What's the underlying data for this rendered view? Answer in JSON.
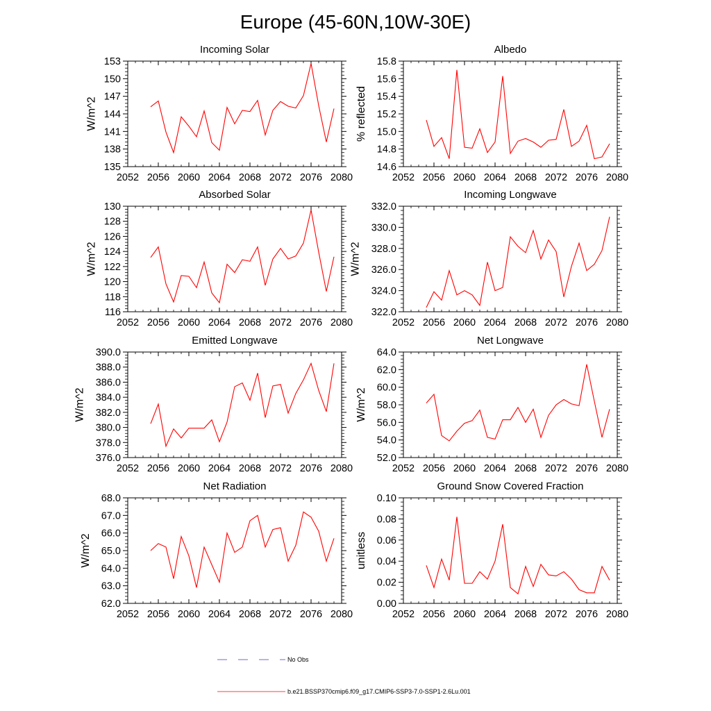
{
  "title": "Europe (45-60N,10W-30E)",
  "legend": [
    {
      "label": "No Obs",
      "color": "#3b3bc8",
      "style": "dashed"
    },
    {
      "label": "b.e21.BSSP370cmip6.f09_g17.CMIP6-SSP3-7.0-SSP1-2.6Lu.001",
      "color": "#ff0000",
      "style": "solid"
    }
  ],
  "chart_data": [
    {
      "type": "line",
      "title": "Incoming Solar",
      "xlabel": "",
      "ylabel": "W/m^2",
      "xlim": [
        2052,
        2080
      ],
      "ylim": [
        135,
        153
      ],
      "xticks": [
        2052,
        2056,
        2060,
        2064,
        2068,
        2072,
        2076,
        2080
      ],
      "yticks": [
        135,
        138,
        141,
        144,
        147,
        150,
        153
      ],
      "ytick_labels": [
        "135",
        "138",
        "141",
        "144",
        "147",
        "150",
        "153"
      ],
      "x": [
        2055,
        2056,
        2057,
        2058,
        2059,
        2060,
        2061,
        2062,
        2063,
        2064,
        2065,
        2066,
        2067,
        2068,
        2069,
        2070,
        2071,
        2072,
        2073,
        2074,
        2075,
        2076,
        2077,
        2078,
        2079
      ],
      "series": [
        {
          "color": "#ff0000",
          "values": [
            145.2,
            146.2,
            140.9,
            137.4,
            143.5,
            141.9,
            140.1,
            144.5,
            139.1,
            137.8,
            145.1,
            142.3,
            144.6,
            144.4,
            146.3,
            140.4,
            144.6,
            146.1,
            145.3,
            145.0,
            147.1,
            152.6,
            145.4,
            139.2,
            144.9
          ]
        }
      ]
    },
    {
      "type": "line",
      "title": "Albedo",
      "xlabel": "",
      "ylabel": "% reflected",
      "xlim": [
        2052,
        2080
      ],
      "ylim": [
        14.6,
        15.8
      ],
      "xticks": [
        2052,
        2056,
        2060,
        2064,
        2068,
        2072,
        2076,
        2080
      ],
      "yticks": [
        14.6,
        14.8,
        15.0,
        15.2,
        15.4,
        15.6,
        15.8
      ],
      "ytick_labels": [
        "14.6",
        "14.8",
        "15.0",
        "15.2",
        "15.4",
        "15.6",
        "15.8"
      ],
      "x": [
        2055,
        2056,
        2057,
        2058,
        2059,
        2060,
        2061,
        2062,
        2063,
        2064,
        2065,
        2066,
        2067,
        2068,
        2069,
        2070,
        2071,
        2072,
        2073,
        2074,
        2075,
        2076,
        2077,
        2078,
        2079
      ],
      "series": [
        {
          "color": "#ff0000",
          "values": [
            15.13,
            14.83,
            14.93,
            14.69,
            15.7,
            14.82,
            14.81,
            15.03,
            14.76,
            14.88,
            15.63,
            14.75,
            14.89,
            14.92,
            14.88,
            14.82,
            14.9,
            14.91,
            15.25,
            14.83,
            14.89,
            15.07,
            14.69,
            14.71,
            14.86
          ]
        }
      ]
    },
    {
      "type": "line",
      "title": "Absorbed Solar",
      "xlabel": "",
      "ylabel": "W/m^2",
      "xlim": [
        2052,
        2080
      ],
      "ylim": [
        116,
        130
      ],
      "xticks": [
        2052,
        2056,
        2060,
        2064,
        2068,
        2072,
        2076,
        2080
      ],
      "yticks": [
        116,
        118,
        120,
        122,
        124,
        126,
        128,
        130
      ],
      "ytick_labels": [
        "116",
        "118",
        "120",
        "122",
        "124",
        "126",
        "128",
        "130"
      ],
      "x": [
        2055,
        2056,
        2057,
        2058,
        2059,
        2060,
        2061,
        2062,
        2063,
        2064,
        2065,
        2066,
        2067,
        2068,
        2069,
        2070,
        2071,
        2072,
        2073,
        2074,
        2075,
        2076,
        2077,
        2078,
        2079
      ],
      "series": [
        {
          "color": "#ff0000",
          "values": [
            123.2,
            124.6,
            119.7,
            117.3,
            120.8,
            120.7,
            119.2,
            122.6,
            118.5,
            117.2,
            122.3,
            121.2,
            122.9,
            122.7,
            124.6,
            119.5,
            123.0,
            124.4,
            123.0,
            123.4,
            125.1,
            129.5,
            123.9,
            118.7,
            123.3
          ]
        }
      ]
    },
    {
      "type": "line",
      "title": "Incoming Longwave",
      "xlabel": "",
      "ylabel": "W/m^2",
      "xlim": [
        2052,
        2080
      ],
      "ylim": [
        322.0,
        332.0
      ],
      "xticks": [
        2052,
        2056,
        2060,
        2064,
        2068,
        2072,
        2076,
        2080
      ],
      "yticks": [
        322,
        324,
        326,
        328,
        330,
        332
      ],
      "ytick_labels": [
        "322.0",
        "324.0",
        "326.0",
        "328.0",
        "330.0",
        "332.0"
      ],
      "x": [
        2055,
        2056,
        2057,
        2058,
        2059,
        2060,
        2061,
        2062,
        2063,
        2064,
        2065,
        2066,
        2067,
        2068,
        2069,
        2070,
        2071,
        2072,
        2073,
        2074,
        2075,
        2076,
        2077,
        2078,
        2079
      ],
      "series": [
        {
          "color": "#ff0000",
          "values": [
            322.4,
            323.9,
            323.1,
            325.9,
            323.6,
            324.0,
            323.6,
            322.6,
            326.7,
            324.0,
            324.3,
            329.1,
            328.2,
            327.6,
            329.7,
            327.0,
            328.8,
            327.7,
            323.4,
            326.3,
            328.5,
            325.9,
            326.5,
            327.8,
            331.0
          ]
        }
      ]
    },
    {
      "type": "line",
      "title": "Emitted Longwave",
      "xlabel": "",
      "ylabel": "W/m^2",
      "xlim": [
        2052,
        2080
      ],
      "ylim": [
        376.0,
        390.0
      ],
      "xticks": [
        2052,
        2056,
        2060,
        2064,
        2068,
        2072,
        2076,
        2080
      ],
      "yticks": [
        376,
        378,
        380,
        382,
        384,
        386,
        388,
        390
      ],
      "ytick_labels": [
        "376.0",
        "378.0",
        "380.0",
        "382.0",
        "384.0",
        "386.0",
        "388.0",
        "390.0"
      ],
      "x": [
        2055,
        2056,
        2057,
        2058,
        2059,
        2060,
        2061,
        2062,
        2063,
        2064,
        2065,
        2066,
        2067,
        2068,
        2069,
        2070,
        2071,
        2072,
        2073,
        2074,
        2075,
        2076,
        2077,
        2078,
        2079
      ],
      "series": [
        {
          "color": "#ff0000",
          "values": [
            380.5,
            383.1,
            377.5,
            379.8,
            378.6,
            379.9,
            379.9,
            379.9,
            381.0,
            378.1,
            380.7,
            385.4,
            385.9,
            383.6,
            387.2,
            381.3,
            385.5,
            385.7,
            381.9,
            384.5,
            386.3,
            388.5,
            384.9,
            382.1,
            388.5
          ]
        }
      ]
    },
    {
      "type": "line",
      "title": "Net Longwave",
      "xlabel": "",
      "ylabel": "W/m^2",
      "xlim": [
        2052,
        2080
      ],
      "ylim": [
        52.0,
        64.0
      ],
      "xticks": [
        2052,
        2056,
        2060,
        2064,
        2068,
        2072,
        2076,
        2080
      ],
      "yticks": [
        52,
        54,
        56,
        58,
        60,
        62,
        64
      ],
      "ytick_labels": [
        "52.0",
        "54.0",
        "56.0",
        "58.0",
        "60.0",
        "62.0",
        "64.0"
      ],
      "x": [
        2055,
        2056,
        2057,
        2058,
        2059,
        2060,
        2061,
        2062,
        2063,
        2064,
        2065,
        2066,
        2067,
        2068,
        2069,
        2070,
        2071,
        2072,
        2073,
        2074,
        2075,
        2076,
        2077,
        2078,
        2079
      ],
      "series": [
        {
          "color": "#ff0000",
          "values": [
            58.2,
            59.2,
            54.5,
            53.9,
            55.0,
            55.9,
            56.2,
            57.4,
            54.3,
            54.1,
            56.3,
            56.3,
            57.7,
            56.0,
            57.5,
            54.3,
            56.8,
            58.0,
            58.6,
            58.1,
            57.9,
            62.6,
            58.4,
            54.3,
            57.5
          ]
        }
      ]
    },
    {
      "type": "line",
      "title": "Net Radiation",
      "xlabel": "",
      "ylabel": "W/m^2",
      "xlim": [
        2052,
        2080
      ],
      "ylim": [
        62.0,
        68.0
      ],
      "xticks": [
        2052,
        2056,
        2060,
        2064,
        2068,
        2072,
        2076,
        2080
      ],
      "yticks": [
        62,
        63,
        64,
        65,
        66,
        67,
        68
      ],
      "ytick_labels": [
        "62.0",
        "63.0",
        "64.0",
        "65.0",
        "66.0",
        "67.0",
        "68.0"
      ],
      "x": [
        2055,
        2056,
        2057,
        2058,
        2059,
        2060,
        2061,
        2062,
        2063,
        2064,
        2065,
        2066,
        2067,
        2068,
        2069,
        2070,
        2071,
        2072,
        2073,
        2074,
        2075,
        2076,
        2077,
        2078,
        2079
      ],
      "series": [
        {
          "color": "#ff0000",
          "values": [
            65.0,
            65.4,
            65.2,
            63.4,
            65.8,
            64.7,
            62.9,
            65.2,
            64.2,
            63.2,
            66.0,
            64.9,
            65.2,
            66.7,
            67.0,
            65.2,
            66.2,
            66.3,
            64.4,
            65.3,
            67.2,
            66.9,
            66.1,
            64.4,
            65.7
          ]
        }
      ]
    },
    {
      "type": "line",
      "title": "Ground Snow Covered Fraction",
      "xlabel": "",
      "ylabel": "unitless",
      "xlim": [
        2052,
        2080
      ],
      "ylim": [
        0.0,
        0.1
      ],
      "xticks": [
        2052,
        2056,
        2060,
        2064,
        2068,
        2072,
        2076,
        2080
      ],
      "yticks": [
        0.0,
        0.02,
        0.04,
        0.06,
        0.08,
        0.1
      ],
      "ytick_labels": [
        "0.00",
        "0.02",
        "0.04",
        "0.06",
        "0.08",
        "0.10"
      ],
      "x": [
        2055,
        2056,
        2057,
        2058,
        2059,
        2060,
        2061,
        2062,
        2063,
        2064,
        2065,
        2066,
        2067,
        2068,
        2069,
        2070,
        2071,
        2072,
        2073,
        2074,
        2075,
        2076,
        2077,
        2078,
        2079
      ],
      "series": [
        {
          "color": "#ff0000",
          "values": [
            0.036,
            0.015,
            0.042,
            0.022,
            0.082,
            0.019,
            0.019,
            0.03,
            0.023,
            0.04,
            0.075,
            0.015,
            0.009,
            0.035,
            0.016,
            0.037,
            0.027,
            0.026,
            0.03,
            0.023,
            0.013,
            0.01,
            0.01,
            0.035,
            0.022
          ]
        }
      ]
    }
  ]
}
